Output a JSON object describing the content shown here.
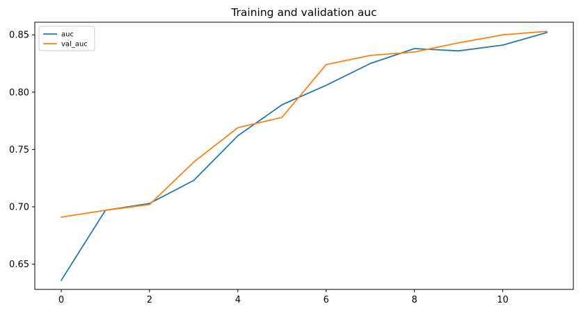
{
  "chart_data": {
    "type": "line",
    "title": "Training and validation auc",
    "xlabel": "",
    "ylabel": "",
    "x": [
      0,
      1,
      2,
      3,
      4,
      5,
      6,
      7,
      8,
      9,
      10,
      11
    ],
    "xlim": [
      -0.6,
      11.6
    ],
    "ylim": [
      0.628,
      0.861
    ],
    "xticks": [
      0,
      2,
      4,
      6,
      8,
      10
    ],
    "yticks": [
      0.65,
      0.7,
      0.75,
      0.8,
      0.85
    ],
    "grid": false,
    "legend_position": "upper-left",
    "series": [
      {
        "name": "auc",
        "color": "#1f77b4",
        "values": [
          0.636,
          0.697,
          0.703,
          0.723,
          0.762,
          0.789,
          0.806,
          0.825,
          0.838,
          0.836,
          0.841,
          0.852
        ]
      },
      {
        "name": "val_auc",
        "color": "#ff7f0e",
        "values": [
          0.691,
          0.697,
          0.702,
          0.739,
          0.769,
          0.778,
          0.824,
          0.832,
          0.835,
          0.843,
          0.85,
          0.853
        ]
      }
    ]
  }
}
